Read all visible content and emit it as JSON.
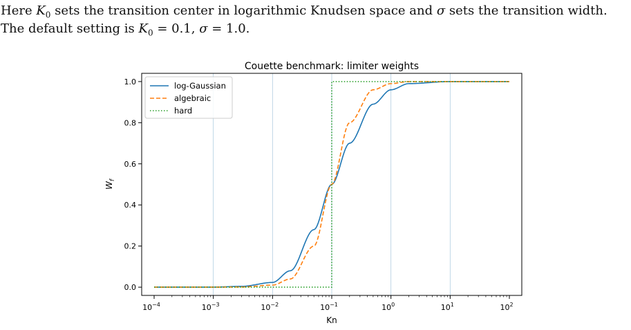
{
  "paragraph": {
    "line1": {
      "a": "Here ",
      "k0": "K",
      "k0sub": "0",
      "b": " sets the transition center in logarithmic Knudsen space and ",
      "sigma": "σ",
      "c": " sets the transition width."
    },
    "line2": {
      "a": "The default setting is ",
      "k0": "K",
      "k0sub": "0",
      "eq1": " = 0.1, ",
      "sigma": "σ",
      "eq2": " = 1.0."
    }
  },
  "chart_data": {
    "type": "line",
    "title": "Couette benchmark: limiter weights",
    "xlabel": "Kn",
    "ylabel": "W",
    "ylabel_sub": "f",
    "xscale": "log",
    "xlim": [
      0.0001,
      100
    ],
    "ylim": [
      0.0,
      1.0
    ],
    "x_ticks": [
      {
        "value": 0.0001,
        "base": "10",
        "exp": "−4"
      },
      {
        "value": 0.001,
        "base": "10",
        "exp": "−3"
      },
      {
        "value": 0.01,
        "base": "10",
        "exp": "−2"
      },
      {
        "value": 0.1,
        "base": "10",
        "exp": "−1"
      },
      {
        "value": 1,
        "base": "10",
        "exp": "0"
      },
      {
        "value": 10,
        "base": "10",
        "exp": "1"
      },
      {
        "value": 100,
        "base": "10",
        "exp": "2"
      }
    ],
    "y_ticks": [
      "0.0",
      "0.2",
      "0.4",
      "0.6",
      "0.8",
      "1.0"
    ],
    "vertical_gridlines_at": [
      0.001,
      0.01,
      0.1,
      1,
      10
    ],
    "legend_position": "top-left",
    "params": {
      "K0": 0.1,
      "sigma": 1.0
    },
    "series": [
      {
        "name": "log-Gaussian",
        "style": "solid",
        "color": "#1f77b4",
        "x": [
          0.0001,
          0.001,
          0.003,
          0.01,
          0.02,
          0.05,
          0.1,
          0.2,
          0.5,
          1,
          2,
          10,
          100
        ],
        "y": [
          0.0,
          0.0003,
          0.004,
          0.023,
          0.08,
          0.28,
          0.5,
          0.7,
          0.89,
          0.96,
          0.99,
          1.0,
          1.0
        ]
      },
      {
        "name": "algebraic",
        "style": "dashed",
        "color": "#ff7f0e",
        "x": [
          0.0001,
          0.001,
          0.003,
          0.01,
          0.02,
          0.05,
          0.1,
          0.2,
          0.5,
          1,
          2,
          10,
          100
        ],
        "y": [
          0.0,
          0.0001,
          0.001,
          0.01,
          0.04,
          0.2,
          0.5,
          0.8,
          0.96,
          0.99,
          1.0,
          1.0,
          1.0
        ]
      },
      {
        "name": "hard",
        "style": "dotted",
        "color": "#2ca02c",
        "x": [
          0.0001,
          0.1,
          0.1,
          100
        ],
        "y": [
          0.0,
          0.0,
          1.0,
          1.0
        ]
      }
    ]
  }
}
